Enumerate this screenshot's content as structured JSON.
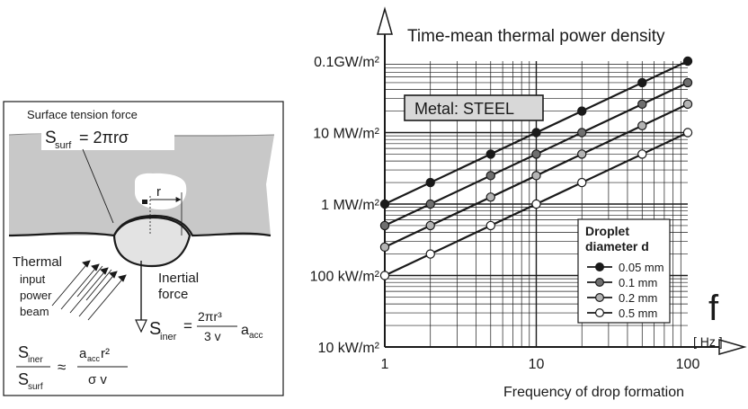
{
  "diagram": {
    "surface_tension_label": "Surface tension force",
    "surf_eq_lhs": "S",
    "surf_eq_lhs_sub": "surf",
    "surf_eq_rhs": "= 2πrσ",
    "radius_label": "r",
    "beam_label_line1": "Thermal",
    "beam_label_line2": "input",
    "beam_label_line3": "power",
    "beam_label_line4": "beam",
    "inertial_label_line1": "Inertial",
    "inertial_label_line2": "force",
    "iner_eq_lhs": "S",
    "iner_eq_lhs_sub": "iner",
    "iner_eq_eq": "=",
    "iner_eq_num": "2πr³",
    "iner_eq_den": "3 v",
    "iner_eq_factor": "a",
    "iner_eq_factor_sub": "acc",
    "ratio_num": "S",
    "ratio_num_sub": "iner",
    "ratio_den": "S",
    "ratio_den_sub": "surf",
    "ratio_approx": "≈",
    "ratio_rhs_num": "a",
    "ratio_rhs_num_sub": "acc",
    "ratio_rhs_num_tail": " r²",
    "ratio_rhs_den": "σ v"
  },
  "chart_data": {
    "type": "line",
    "title": "Time-mean thermal power density",
    "xlabel": "Frequency of drop formation",
    "x_axis_symbol": "f",
    "x_axis_unit": "[ Hz ]",
    "x_scale": "log",
    "y_scale": "log",
    "xlim": [
      1,
      100
    ],
    "ylim_W_per_m2": [
      10000,
      100000000
    ],
    "x_ticks": [
      {
        "value": 1,
        "label": "1"
      },
      {
        "value": 10,
        "label": "10"
      },
      {
        "value": 100,
        "label": "100"
      }
    ],
    "y_ticks": [
      {
        "value": 10000,
        "label": "10 kW/m²"
      },
      {
        "value": 100000,
        "label": "100 kW/m²"
      },
      {
        "value": 1000000,
        "label": "1 MW/m²"
      },
      {
        "value": 10000000,
        "label": "10 MW/m²"
      },
      {
        "value": 100000000,
        "label": "0.1GW/m²"
      }
    ],
    "grid": true,
    "annotation": "Metal: STEEL",
    "legend_title_line1": "Droplet",
    "legend_title_line2": "diameter d",
    "legend_placement": "bottom-right",
    "x_points": [
      1,
      2,
      5,
      10,
      20,
      50,
      100
    ],
    "series": [
      {
        "name": "0.05 mm",
        "marker_color": "#1a1a1a",
        "values": [
          1000000,
          2000000,
          5000000,
          10000000,
          20000000,
          50000000,
          100000000
        ]
      },
      {
        "name": "0.1 mm",
        "marker_color": "#6f6f6f",
        "values": [
          500000,
          1000000,
          2500000,
          5000000,
          10000000,
          25000000,
          50000000
        ]
      },
      {
        "name": "0.2 mm",
        "marker_color": "#b4b4b4",
        "values": [
          250000,
          500000,
          1250000,
          2500000,
          5000000,
          12500000,
          25000000
        ]
      },
      {
        "name": "0.5 mm",
        "marker_color": "#ffffff",
        "values": [
          100000,
          200000,
          500000,
          1000000,
          2000000,
          5000000,
          10000000
        ]
      }
    ]
  }
}
